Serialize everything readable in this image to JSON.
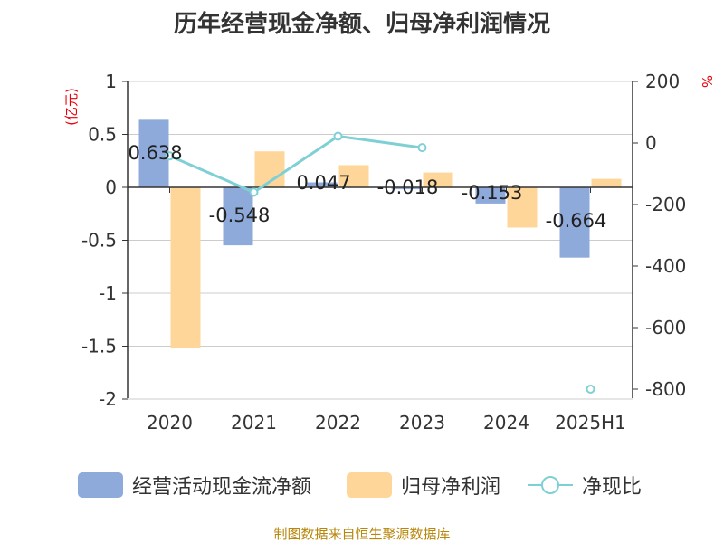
{
  "chart_data": {
    "type": "bar",
    "title": "历年经营现金净额、归母净利润情况",
    "categories": [
      "2020",
      "2021",
      "2022",
      "2023",
      "2024",
      "2025H1"
    ],
    "y_left": {
      "unit_label": "(亿元)",
      "ylim": [
        -2,
        1
      ],
      "ticks": [
        "1",
        "0.5",
        "0",
        "-0.5",
        "-1",
        "-1.5",
        "-2"
      ]
    },
    "y_right": {
      "unit_label": "%",
      "ylim": [
        -800,
        200
      ],
      "ticks": [
        "200",
        "0",
        "-200",
        "-400",
        "-600",
        "-800"
      ]
    },
    "series": [
      {
        "name": "经营活动现金流净额",
        "type": "bar",
        "axis": "left",
        "color": "#8eaadb",
        "values": [
          0.638,
          -0.548,
          0.047,
          -0.018,
          -0.153,
          -0.664
        ],
        "data_labels": [
          "0.638",
          "-0.548",
          "0.047",
          "-0.018",
          "-0.153",
          "-0.664"
        ]
      },
      {
        "name": "归母净利润",
        "type": "bar",
        "axis": "left",
        "color": "#ffd699",
        "values": [
          -1.52,
          0.34,
          0.21,
          0.14,
          -0.38,
          0.08
        ]
      },
      {
        "name": "净现比",
        "type": "line",
        "axis": "right",
        "color": "#7fd0d4",
        "values": [
          -42,
          -160,
          22,
          -15,
          null,
          -800
        ]
      }
    ],
    "grid": true,
    "legend_position": "bottom"
  },
  "footer": "制图数据来自恒生聚源数据库"
}
